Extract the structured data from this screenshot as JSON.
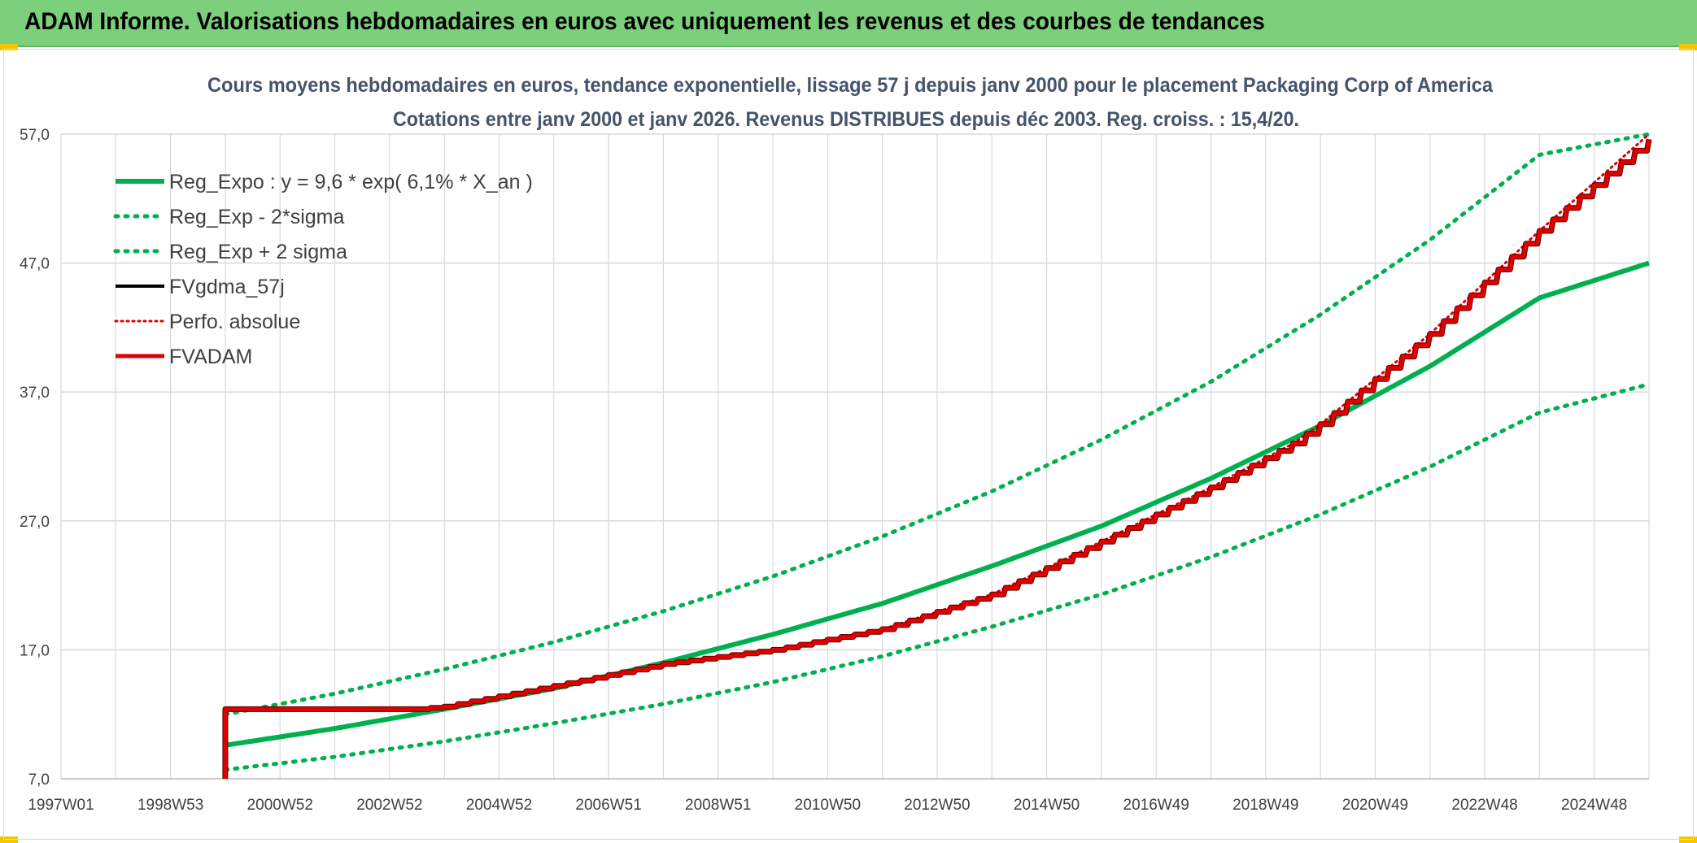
{
  "header": {
    "title": "ADAM Informe. Valorisations hebdomadaires en euros avec uniquement les revenus et des courbes de tendances"
  },
  "colors": {
    "header_bg": "#7ccf7b",
    "green": "#00b050",
    "red": "#e00000",
    "black": "#000000",
    "grid": "#d9d9d9"
  },
  "chart_data": {
    "type": "line",
    "title": "Cours moyens hebdomadaires en euros, tendance exponentielle, lissage 57 j depuis janv 2000 pour le placement Packaging Corp of America",
    "subtitle": "Cotations entre janv 2000 et janv 2026. Revenus DISTRIBUES depuis déc 2003. Reg. croiss. : 15,4/20.",
    "xlabel": "",
    "ylabel": "",
    "x_range": [
      1997.0,
      2026.0
    ],
    "ylim": [
      7.0,
      57.0
    ],
    "y_ticks": [
      "57,0",
      "47,0",
      "37,0",
      "27,0",
      "17,0",
      "7,0"
    ],
    "x_tick_labels": [
      "1997W01",
      "1998W53",
      "2000W52",
      "2002W52",
      "2004W52",
      "2006W51",
      "2008W51",
      "2010W50",
      "2012W50",
      "2014W50",
      "2016W49",
      "2018W49",
      "2020W49",
      "2022W48",
      "2024W48"
    ],
    "grid": true,
    "legend_position": "top-left",
    "series": [
      {
        "name": "Reg_Expo : y = 9,6 * exp( 6,1% *  X_an )",
        "style": "solid-green",
        "x": [
          2000.0,
          2002.0,
          2004.0,
          2006.0,
          2008.0,
          2010.0,
          2012.0,
          2014.0,
          2016.0,
          2018.0,
          2020.0,
          2022.0,
          2024.0,
          2026.0
        ],
        "y": [
          9.6,
          10.9,
          12.4,
          14.0,
          16.0,
          18.2,
          20.6,
          23.5,
          26.6,
          30.3,
          34.4,
          39.0,
          44.3,
          47.0
        ]
      },
      {
        "name": "Reg_Exp - 2*sigma",
        "style": "dotted-green",
        "x": [
          2000.0,
          2002.0,
          2004.0,
          2006.0,
          2008.0,
          2010.0,
          2012.0,
          2014.0,
          2016.0,
          2018.0,
          2020.0,
          2022.0,
          2024.0,
          2026.0
        ],
        "y": [
          7.7,
          8.7,
          9.9,
          11.3,
          12.8,
          14.5,
          16.5,
          18.8,
          21.3,
          24.2,
          27.5,
          31.2,
          35.4,
          37.6
        ]
      },
      {
        "name": "Reg_Exp + 2 sigma",
        "style": "dotted-green",
        "x": [
          2000.0,
          2002.0,
          2004.0,
          2006.0,
          2008.0,
          2010.0,
          2012.0,
          2014.0,
          2016.0,
          2018.0,
          2020.0,
          2022.0,
          2024.0,
          2026.0
        ],
        "y": [
          12.0,
          13.6,
          15.5,
          17.6,
          20.0,
          22.7,
          25.8,
          29.3,
          33.3,
          37.8,
          43.0,
          48.8,
          55.4,
          57.0
        ]
      },
      {
        "name": "FVgdma_57j",
        "style": "solid-black",
        "x": [],
        "y": []
      },
      {
        "name": "Perfo. absolue",
        "style": "dotted-red",
        "x": [
          2000.0,
          2003.5,
          2004.0,
          2006.0,
          2008.0,
          2010.0,
          2012.0,
          2014.0,
          2016.0,
          2018.0,
          2019.5,
          2020.0,
          2022.0,
          2024.0,
          2026.0
        ],
        "y": [
          12.4,
          12.4,
          12.5,
          14.2,
          15.9,
          17.0,
          18.6,
          21.3,
          25.4,
          29.6,
          33.0,
          34.5,
          41.5,
          49.5,
          57.0
        ]
      },
      {
        "name": "FVADAM",
        "style": "solid-red",
        "x": [
          2000.0,
          2000.0,
          2003.5,
          2004.0,
          2006.0,
          2008.0,
          2010.0,
          2012.0,
          2014.0,
          2016.0,
          2018.0,
          2019.5,
          2020.0,
          2022.0,
          2024.0,
          2026.0
        ],
        "y": [
          7.0,
          12.4,
          12.4,
          12.6,
          14.2,
          15.9,
          17.0,
          18.6,
          21.3,
          25.4,
          29.6,
          33.0,
          34.5,
          41.5,
          49.5,
          56.6
        ]
      }
    ]
  }
}
